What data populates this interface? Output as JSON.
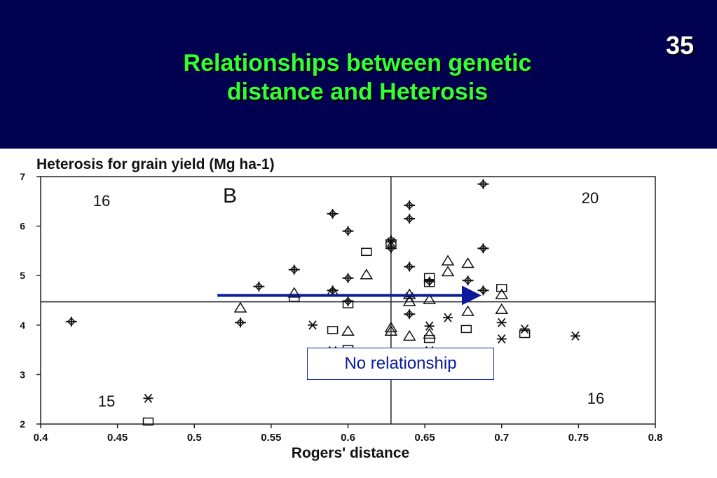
{
  "slide": {
    "number": "35",
    "title": "Relationships between  genetic\ndistance and Heterosis",
    "callout": "No relationship",
    "colors": {
      "background": "#000050",
      "title": "#33ff33",
      "arrow": "#0a1a9a"
    }
  },
  "chart_data": {
    "type": "scatter",
    "panel_label": "B",
    "xlabel": "Rogers' distance",
    "ylabel": "Heterosis for grain yield (Mg ha-1)",
    "xlim": [
      0.4,
      0.8
    ],
    "ylim": [
      2,
      7
    ],
    "xticks": [
      "0.4",
      "0.45",
      "0.5",
      "0.55",
      "0.6",
      "0.65",
      "0.7",
      "0.75",
      "0.8"
    ],
    "yticks": [
      "2",
      "3",
      "4",
      "5",
      "6",
      "7"
    ],
    "reference_lines": {
      "x": 0.628,
      "y": 4.47
    },
    "quadrant_counts": [
      {
        "quadrant": "top-left",
        "count": "16"
      },
      {
        "quadrant": "top-right",
        "count": "20"
      },
      {
        "quadrant": "bottom-left",
        "count": "15"
      },
      {
        "quadrant": "bottom-right",
        "count": "16"
      }
    ],
    "arrow": {
      "from": [
        0.515,
        4.6
      ],
      "to": [
        0.685,
        4.6
      ]
    },
    "series": [
      {
        "marker": "plus-diamond",
        "points": [
          [
            0.42,
            4.07
          ],
          [
            0.53,
            4.05
          ],
          [
            0.542,
            4.78
          ],
          [
            0.565,
            5.12
          ],
          [
            0.59,
            6.25
          ],
          [
            0.59,
            4.7
          ],
          [
            0.6,
            5.9
          ],
          [
            0.6,
            4.95
          ],
          [
            0.6,
            4.48
          ],
          [
            0.628,
            5.72
          ],
          [
            0.628,
            5.55
          ],
          [
            0.64,
            6.42
          ],
          [
            0.64,
            6.15
          ],
          [
            0.64,
            5.18
          ],
          [
            0.64,
            4.22
          ],
          [
            0.653,
            4.88
          ],
          [
            0.678,
            4.9
          ],
          [
            0.688,
            6.85
          ],
          [
            0.688,
            5.55
          ],
          [
            0.688,
            4.7
          ]
        ]
      },
      {
        "marker": "triangle",
        "points": [
          [
            0.53,
            4.35
          ],
          [
            0.565,
            4.65
          ],
          [
            0.59,
            4.68
          ],
          [
            0.6,
            3.88
          ],
          [
            0.6,
            3.38
          ],
          [
            0.612,
            5.02
          ],
          [
            0.628,
            3.95
          ],
          [
            0.628,
            3.88
          ],
          [
            0.64,
            4.62
          ],
          [
            0.64,
            4.48
          ],
          [
            0.64,
            3.78
          ],
          [
            0.653,
            4.52
          ],
          [
            0.653,
            3.82
          ],
          [
            0.665,
            5.3
          ],
          [
            0.665,
            5.08
          ],
          [
            0.678,
            5.25
          ],
          [
            0.678,
            4.28
          ],
          [
            0.7,
            4.62
          ],
          [
            0.7,
            4.32
          ]
        ]
      },
      {
        "marker": "square",
        "points": [
          [
            0.47,
            2.05
          ],
          [
            0.565,
            4.55
          ],
          [
            0.59,
            3.9
          ],
          [
            0.6,
            4.42
          ],
          [
            0.6,
            3.52
          ],
          [
            0.612,
            5.48
          ],
          [
            0.628,
            5.65
          ],
          [
            0.653,
            4.97
          ],
          [
            0.653,
            4.85
          ],
          [
            0.653,
            3.72
          ],
          [
            0.677,
            3.92
          ],
          [
            0.7,
            4.75
          ],
          [
            0.715,
            3.82
          ]
        ]
      },
      {
        "marker": "asterisk",
        "points": [
          [
            0.47,
            2.52
          ],
          [
            0.577,
            4.0
          ],
          [
            0.59,
            3.48
          ],
          [
            0.628,
            5.68
          ],
          [
            0.64,
            4.57
          ],
          [
            0.653,
            3.98
          ],
          [
            0.653,
            3.48
          ],
          [
            0.665,
            4.15
          ],
          [
            0.7,
            4.05
          ],
          [
            0.7,
            3.72
          ],
          [
            0.715,
            3.92
          ],
          [
            0.748,
            3.78
          ]
        ]
      }
    ]
  }
}
